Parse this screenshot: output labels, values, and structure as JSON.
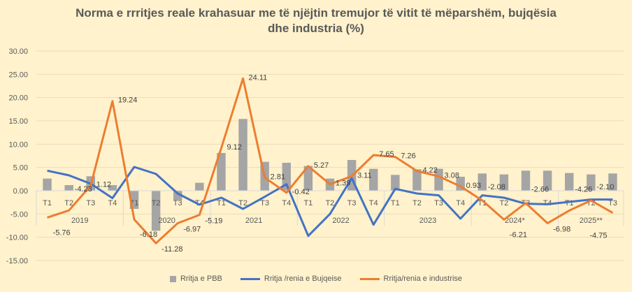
{
  "chart_data": {
    "type": "bar+line",
    "title": "Norma e rrritjes reale krahasuar me të njëjtin tremujor të vitit të mëparshëm, bujqësia dhe industria (%)",
    "title_lines": [
      "Norma e rrritjes reale krahasuar me të njëjtin tremujor të vitit të mëparshëm, bujqësia",
      "dhe industria (%)"
    ],
    "ylim": [
      -15,
      30
    ],
    "yticks": [
      "-15.00",
      "-10.00",
      "-5.00",
      "0.00",
      "5.00",
      "10.00",
      "15.00",
      "20.00",
      "25.00",
      "30.00"
    ],
    "ytick_values": [
      -15,
      -10,
      -5,
      0,
      5,
      10,
      15,
      20,
      25,
      30
    ],
    "grid": true,
    "legend": "bottom",
    "groups": [
      {
        "year": "2019",
        "quarters": [
          "T1",
          "T2",
          "T3",
          "T4"
        ]
      },
      {
        "year": "2020",
        "quarters": [
          "T1",
          "T2",
          "T3",
          "T4"
        ]
      },
      {
        "year": "2021",
        "quarters": [
          "T1",
          "T2",
          "T3",
          "T4"
        ]
      },
      {
        "year": "2022",
        "quarters": [
          "T1",
          "T2",
          "T3",
          "T4"
        ]
      },
      {
        "year": "2023",
        "quarters": [
          "T1",
          "T2",
          "T3",
          "T4"
        ]
      },
      {
        "year": "2024*",
        "quarters": [
          "T1",
          "T2",
          "T3",
          "T4"
        ]
      },
      {
        "year": "2025**",
        "quarters": [
          "T1",
          "T2",
          "T3"
        ]
      }
    ],
    "series": [
      {
        "name": "Rritja e PBB",
        "type": "bar",
        "color": "#A5A5A5",
        "values": [
          2.6,
          1.2,
          3.1,
          1.2,
          -3.9,
          -8.6,
          -2.0,
          1.7,
          8.1,
          15.4,
          6.2,
          6.0,
          5.3,
          2.6,
          6.6,
          4.7,
          3.4,
          4.6,
          4.7,
          3.0,
          3.7,
          3.5,
          4.3,
          4.3,
          3.8,
          3.5,
          3.7
        ]
      },
      {
        "name": "Rritja /renia e Bujqeise",
        "type": "line",
        "color": "#4472C4",
        "values": [
          4.3,
          3.3,
          1.5,
          -1.6,
          5.1,
          3.6,
          -0.6,
          -3.0,
          -1.5,
          -3.9,
          -1.3,
          1.4,
          -9.7,
          -5.0,
          2.7,
          -7.3,
          0.4,
          -0.6,
          -1.0,
          -6.0,
          -1.0,
          -1.5,
          -2.8,
          -2.9,
          -2.4,
          -1.9,
          -1.9
        ]
      },
      {
        "name": "Rritja/renia e industrise",
        "type": "line",
        "color": "#ED7D31",
        "values": [
          -5.76,
          -4.23,
          1.12,
          19.24,
          -6.18,
          -11.28,
          -6.97,
          -5.19,
          9.12,
          24.11,
          2.81,
          -0.42,
          5.27,
          1.39,
          3.11,
          7.65,
          7.26,
          4.22,
          3.08,
          0.93,
          -2.08,
          -6.21,
          -2.66,
          -6.98,
          -4.26,
          -2.1,
          -4.75
        ],
        "labels": [
          "-5.76",
          "-4.23",
          "1.12",
          "19.24",
          "-6.18",
          "-11.28",
          "-6.97",
          "-5.19",
          "9.12",
          "24.11",
          "2.81",
          "-0.42",
          "5.27",
          "1.39",
          "3.11",
          "7.65",
          "7.26",
          "4.22",
          "3.08",
          "0.93",
          "-2.08",
          "-6.21",
          "-2.66",
          "-6.98",
          "-4.26",
          "-2.10",
          "-4.75"
        ]
      }
    ]
  }
}
